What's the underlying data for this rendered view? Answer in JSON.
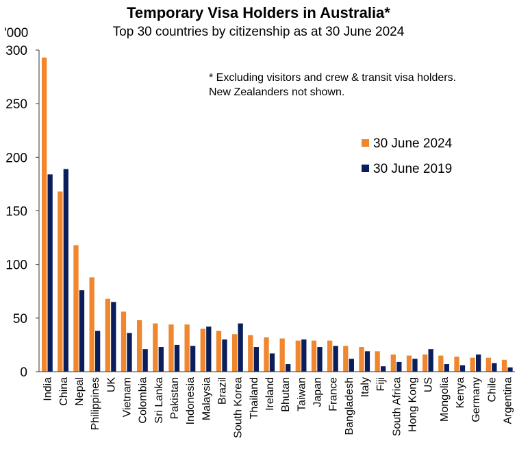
{
  "chart_data": {
    "type": "bar",
    "title": "Temporary Visa Holders in Australia*",
    "subtitle": "Top 30 countries by citizenship as at 30 June 2024",
    "ylabel": "'000",
    "xlabel": "",
    "ylim": [
      0,
      300
    ],
    "yticks": [
      0,
      50,
      100,
      150,
      200,
      250,
      300
    ],
    "grid": false,
    "legend_position": "right",
    "note_lines": [
      "* Excluding visitors and crew & transit visa holders.",
      "New Zealanders not shown."
    ],
    "categories": [
      "India",
      "China",
      "Nepal",
      "Philippines",
      "UK",
      "Vietnam",
      "Colombia",
      "Sri Lanka",
      "Pakistan",
      "Indonesia",
      "Malaysia",
      "Brazil",
      "South Korea",
      "Thailand",
      "Ireland",
      "Bhutan",
      "Taiwan",
      "Japan",
      "France",
      "Bangladesh",
      "Italy",
      "Fiji",
      "South Africa",
      "Hong Kong",
      "US",
      "Mongolia",
      "Kenya",
      "Germany",
      "Chile",
      "Argentina"
    ],
    "series": [
      {
        "name": "30 June 2024",
        "color": "#F0862E",
        "values": [
          293,
          168,
          118,
          88,
          68,
          56,
          48,
          45,
          44,
          44,
          40,
          38,
          35,
          34,
          32,
          31,
          29,
          29,
          29,
          24,
          23,
          19,
          16,
          15,
          16,
          15,
          14,
          13,
          13,
          11
        ]
      },
      {
        "name": "30 June 2019",
        "color": "#0A1E5C",
        "values": [
          184,
          189,
          76,
          38,
          65,
          36,
          21,
          23,
          25,
          24,
          42,
          30,
          45,
          23,
          17,
          7,
          30,
          23,
          24,
          12,
          19,
          5,
          9,
          12,
          21,
          7,
          6,
          16,
          8,
          4
        ]
      }
    ]
  }
}
